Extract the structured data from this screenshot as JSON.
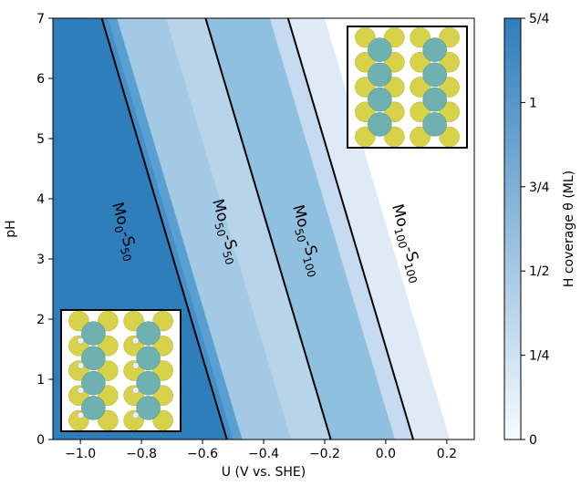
{
  "chart_data": {
    "type": "contour",
    "xlabel": "U (V vs. SHE)",
    "ylabel": "pH",
    "xlim": [
      -1.09,
      0.29
    ],
    "ylim": [
      0,
      7
    ],
    "xticks": [
      {
        "value": -1.0,
        "label": "−1.0"
      },
      {
        "value": -0.8,
        "label": "−0.8"
      },
      {
        "value": -0.6,
        "label": "−0.6"
      },
      {
        "value": -0.4,
        "label": "−0.4"
      },
      {
        "value": -0.2,
        "label": "−0.2"
      },
      {
        "value": 0.0,
        "label": "0.0"
      },
      0.2
    ],
    "yticks": [
      0,
      1,
      2,
      3,
      4,
      5,
      6,
      7
    ],
    "bands": [
      {
        "theta": 0.25,
        "color": "#deebf7",
        "u_ph0": 0.21,
        "u_ph7": -0.2
      },
      {
        "theta": 0.5,
        "color": "#c6dbef",
        "u_ph0": 0.09,
        "u_ph7": -0.32
      },
      {
        "theta": 0.75,
        "color": "#8fc0e0",
        "u_ph0": 0.03,
        "u_ph7": -0.38
      },
      {
        "theta": 0.5,
        "color": "#b7d4ea",
        "u_ph0": -0.18,
        "u_ph7": -0.59
      },
      {
        "theta": 0.625,
        "color": "#a3c9e4",
        "u_ph0": -0.31,
        "u_ph7": -0.72
      },
      {
        "theta": 1.0,
        "color": "#5a9fd1",
        "u_ph0": -0.47,
        "u_ph7": -0.88
      },
      {
        "theta": 1.125,
        "color": "#4590c9",
        "u_ph0": -0.5,
        "u_ph7": -0.91
      },
      {
        "theta": 1.25,
        "color": "#2f7ebc",
        "u_ph0": -0.52,
        "u_ph7": -0.93
      }
    ],
    "phase_boundaries": [
      {
        "u_ph0": -0.52,
        "u_ph7": -0.93
      },
      {
        "u_ph0": -0.18,
        "u_ph7": -0.59
      },
      {
        "u_ph0": 0.09,
        "u_ph7": -0.32
      }
    ],
    "annotations": [
      {
        "parts": [
          "Mo",
          "0",
          "-S",
          "50"
        ]
      },
      {
        "parts": [
          "Mo",
          "50",
          "-S",
          "50"
        ]
      },
      {
        "parts": [
          "Mo",
          "50",
          "-S",
          "100"
        ]
      },
      {
        "parts": [
          "Mo",
          "100",
          "-S",
          "100"
        ]
      }
    ],
    "colorbar": {
      "label": "H coverage θ (ML)",
      "lim": [
        0,
        1.25
      ],
      "ticks": [
        0,
        {
          "value": 0.25,
          "label": "1/4"
        },
        {
          "value": 0.5,
          "label": "1/2"
        },
        {
          "value": 0.75,
          "label": "3/4"
        },
        1,
        {
          "value": 1.25,
          "label": "5/4"
        }
      ],
      "colors": [
        "#f7fbff",
        "#2f7ebc"
      ]
    }
  }
}
